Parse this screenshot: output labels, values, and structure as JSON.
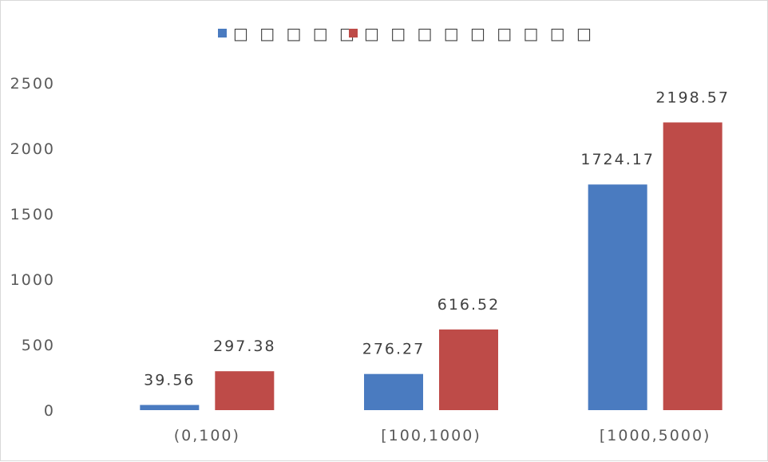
{
  "chart_data": {
    "type": "bar",
    "categories": [
      "(0,100)",
      "[100,1000)",
      "[1000,5000)"
    ],
    "series": [
      {
        "name": "□ □ □ □ □",
        "values": [
          39.56,
          276.27,
          1724.17
        ],
        "color": "#4a7bc0",
        "labels": [
          "39.56",
          "276.27",
          "1724.17"
        ]
      },
      {
        "name": "□ □ □ □ □ □ □ □ □",
        "values": [
          297.38,
          616.52,
          2198.57
        ],
        "color": "#be4b48",
        "labels": [
          "297.38",
          "616.52",
          "2198.57"
        ]
      }
    ],
    "yticks": [
      "0",
      "500",
      "1000",
      "1500",
      "2000",
      "2500"
    ],
    "ylim": [
      0,
      2500
    ],
    "grid": false,
    "legend_position": "top-center",
    "title": "",
    "xlabel": "",
    "ylabel": ""
  }
}
